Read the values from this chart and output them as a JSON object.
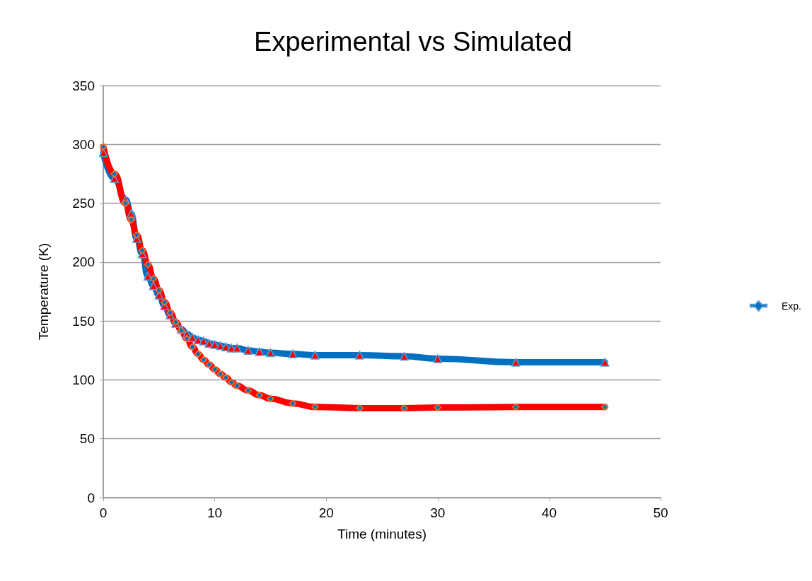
{
  "chart_data": {
    "type": "line",
    "title": "Experimental vs Simulated",
    "xlabel": "Time (minutes)",
    "ylabel": "Temperature (K)",
    "x": [
      0,
      1,
      2,
      2.5,
      3,
      3.5,
      4,
      4.5,
      5,
      5.5,
      6,
      6.5,
      7,
      7.5,
      8,
      8.5,
      9,
      9.5,
      10,
      10.5,
      11,
      11.5,
      12,
      13,
      14,
      15,
      17,
      19,
      23,
      27,
      30,
      37,
      45
    ],
    "series": [
      {
        "name": "Exp.",
        "color": "#0070c0",
        "marker": "triangle",
        "values": [
          293,
          271,
          253,
          241,
          220,
          207,
          188,
          180,
          172,
          163,
          155,
          148,
          143,
          139,
          136,
          134,
          133,
          131,
          130,
          129,
          128,
          127,
          127,
          125,
          124,
          123,
          122,
          121,
          121,
          120,
          118,
          115,
          115
        ]
      },
      {
        "color": "#ff0000",
        "marker": "diamond",
        "values": [
          298,
          275,
          250,
          236,
          223,
          210,
          198,
          186,
          176,
          166,
          157,
          149,
          142,
          135,
          128,
          122,
          117,
          113,
          109,
          105,
          102,
          98,
          95,
          91,
          87,
          84,
          80,
          77,
          76,
          76,
          76.5,
          77,
          77
        ]
      }
    ],
    "xlim": [
      0,
      50
    ],
    "xticks": [
      0,
      10,
      20,
      30,
      40,
      50
    ],
    "ylim": [
      0,
      350
    ],
    "yticks": [
      0,
      50,
      100,
      150,
      200,
      250,
      300,
      350
    ],
    "grid": "y",
    "legend": "right"
  }
}
